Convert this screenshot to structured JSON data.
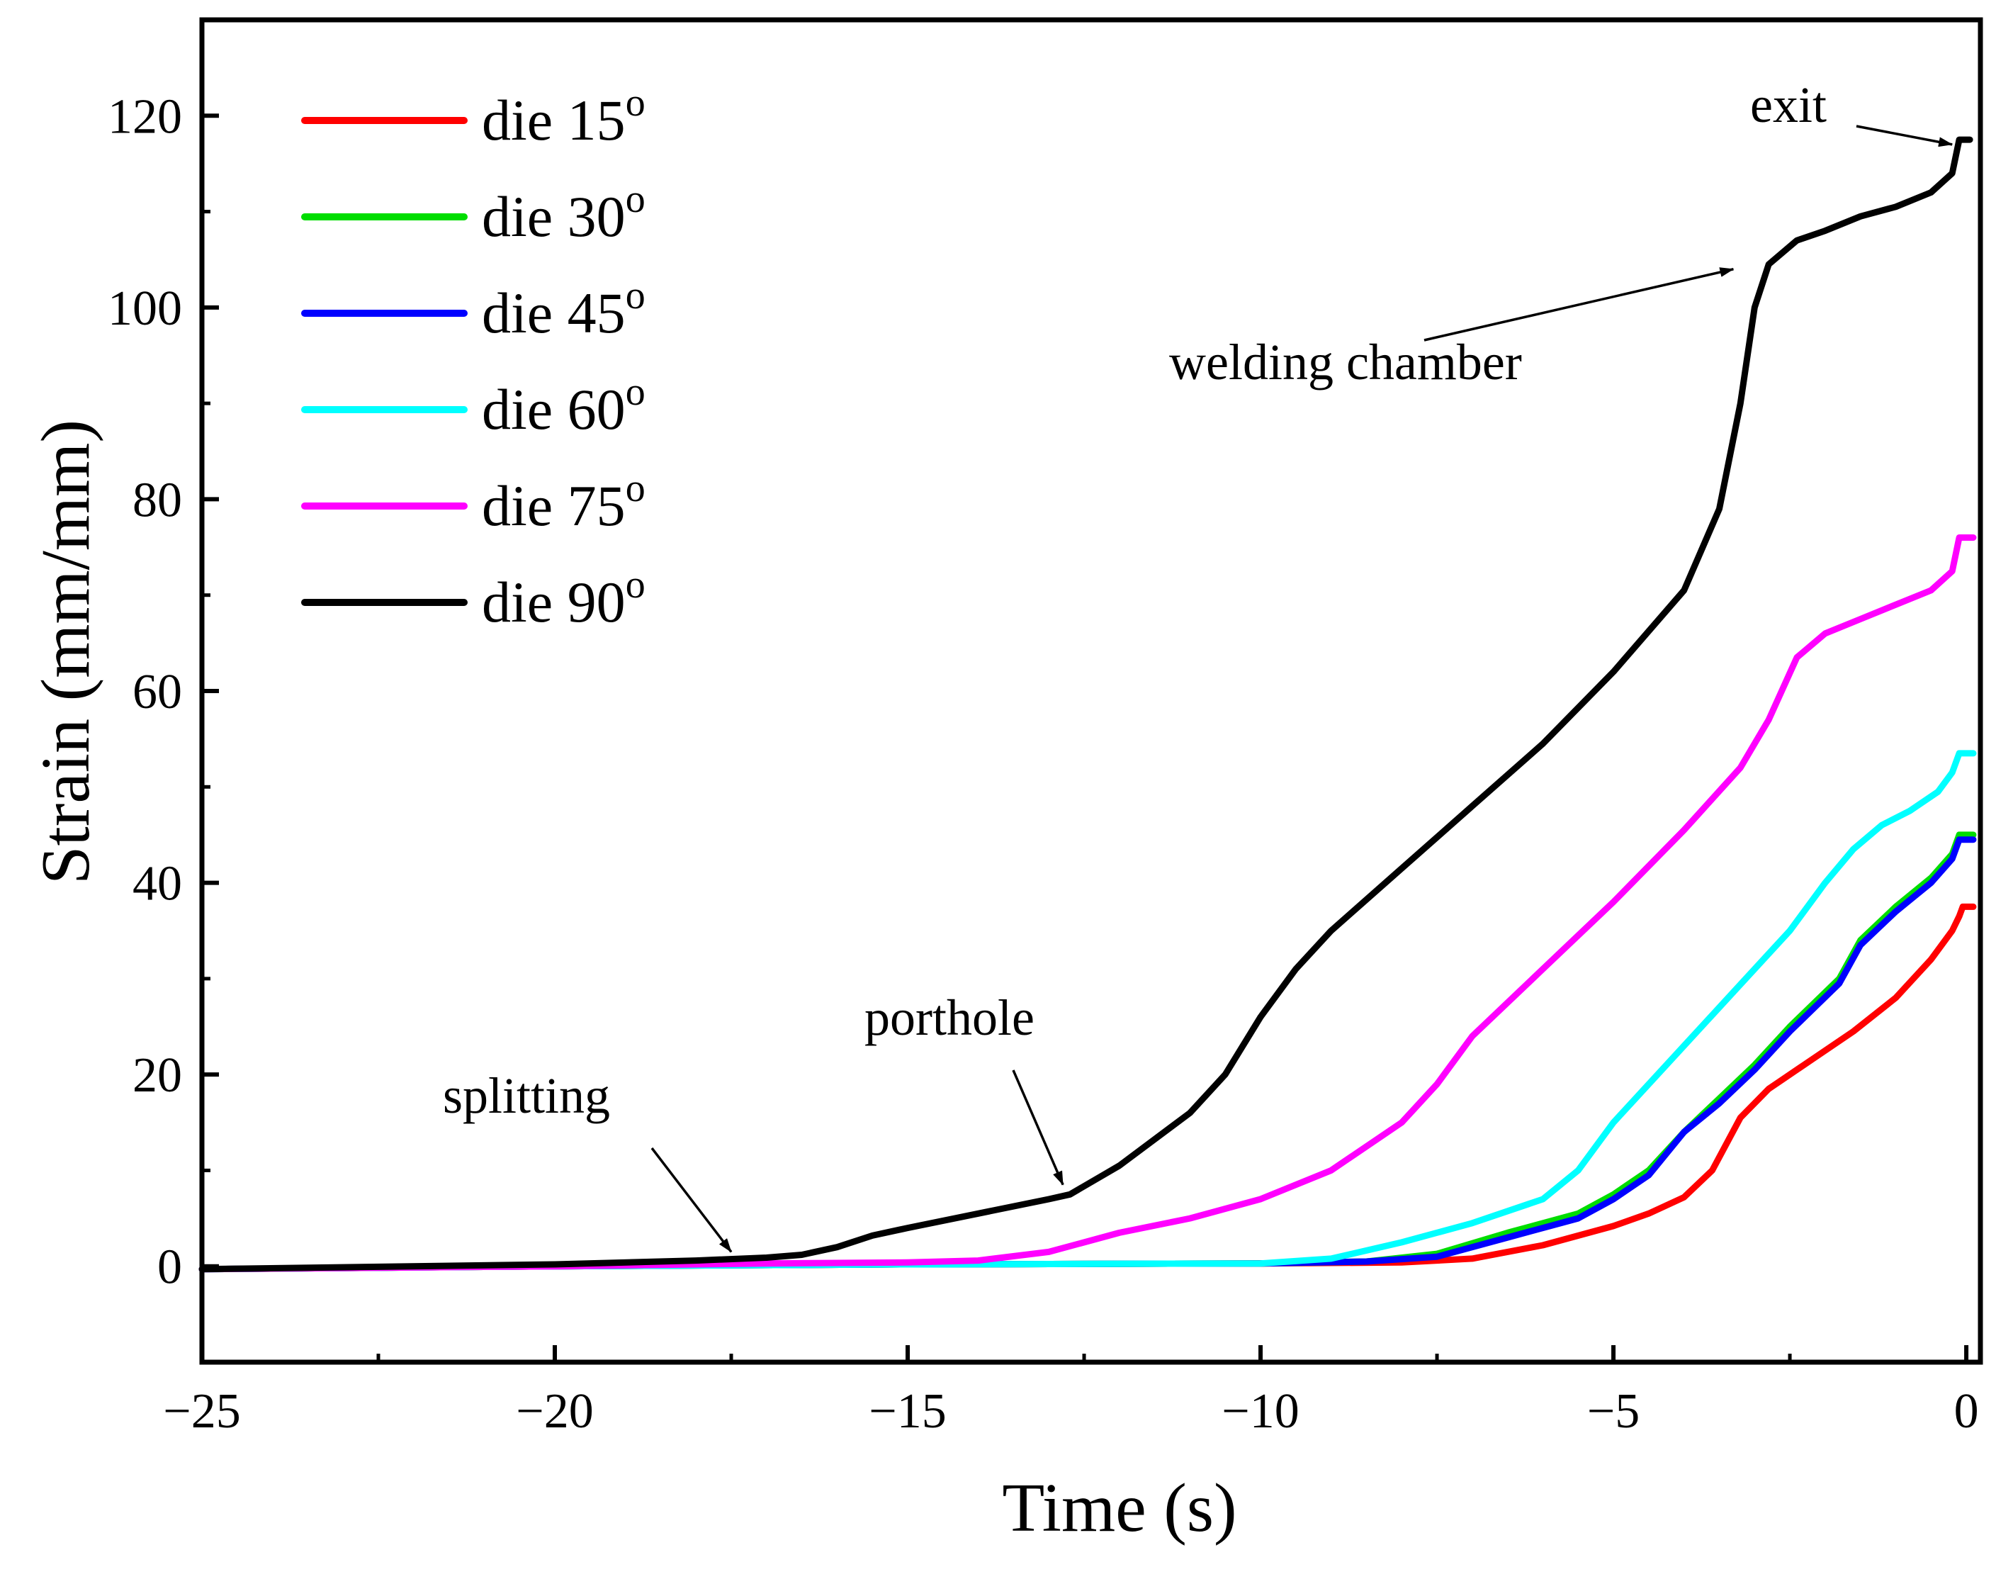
{
  "chart_data": {
    "type": "line",
    "title": "",
    "xlabel": "Time (s)",
    "ylabel": "Strain (mm/mm)",
    "xlim": [
      -25,
      0.2
    ],
    "ylim": [
      -10,
      130
    ],
    "xticks": [
      -25,
      -20,
      -15,
      -10,
      -5,
      0
    ],
    "yticks": [
      0,
      20,
      40,
      60,
      80,
      100,
      120
    ],
    "xtick_labels": [
      "−25",
      "−20",
      "−15",
      "−10",
      "−5",
      "0"
    ],
    "ytick_labels": [
      "0",
      "20",
      "40",
      "60",
      "80",
      "100",
      "120"
    ],
    "grid": false,
    "legend_position": "top-left",
    "series": [
      {
        "name": "die 15",
        "legend_label": "die 15",
        "superscript": "o",
        "color": "#ff0000",
        "x": [
          -25,
          -20,
          -15,
          -10,
          -8,
          -7,
          -6,
          -5,
          -4.5,
          -4,
          -3.6,
          -3.2,
          -2.8,
          -2.2,
          -1.6,
          -1,
          -0.5,
          -0.2,
          -0.1,
          -0.05,
          0.1
        ],
        "y": [
          -0.3,
          0,
          0.2,
          0.3,
          0.4,
          0.8,
          2.2,
          4.2,
          5.5,
          7.2,
          10,
          15.5,
          18.5,
          21.5,
          24.5,
          28,
          32,
          35,
          36.5,
          37.5,
          37.5
        ]
      },
      {
        "name": "die 30",
        "legend_label": "die 30",
        "superscript": "o",
        "color": "#00dd00",
        "x": [
          -25,
          -20,
          -15,
          -10,
          -8.5,
          -7.5,
          -6.5,
          -5.5,
          -5,
          -4.5,
          -4,
          -3.5,
          -3,
          -2.5,
          -1.8,
          -1.5,
          -1,
          -0.5,
          -0.2,
          -0.1,
          0.1
        ],
        "y": [
          -0.3,
          0,
          0.2,
          0.3,
          0.5,
          1.3,
          3.5,
          5.5,
          7.5,
          10,
          14,
          17.5,
          21,
          25,
          30,
          34,
          37.5,
          40.5,
          43,
          45,
          45
        ]
      },
      {
        "name": "die 45",
        "legend_label": "die 45",
        "superscript": "o",
        "color": "#0000ff",
        "x": [
          -25,
          -20,
          -15,
          -10,
          -8.5,
          -7.5,
          -6.5,
          -5.5,
          -5,
          -4.5,
          -4,
          -3.5,
          -3,
          -2.5,
          -1.8,
          -1.5,
          -1,
          -0.5,
          -0.2,
          -0.1,
          0.1
        ],
        "y": [
          -0.3,
          0,
          0.2,
          0.3,
          0.5,
          1.0,
          3.0,
          5.0,
          7.0,
          9.5,
          14,
          17,
          20.5,
          24.5,
          29.5,
          33.5,
          37,
          40,
          42.5,
          44.5,
          44.5
        ]
      },
      {
        "name": "die 60",
        "legend_label": "die 60",
        "superscript": "o",
        "color": "#00ffff",
        "x": [
          -25,
          -20,
          -15,
          -10,
          -9,
          -8,
          -7,
          -6,
          -5.5,
          -5,
          -4.5,
          -4,
          -3.5,
          -3,
          -2.5,
          -2,
          -1.6,
          -1.2,
          -0.8,
          -0.4,
          -0.2,
          -0.1,
          0.1
        ],
        "y": [
          -0.3,
          0,
          0.2,
          0.3,
          0.8,
          2.5,
          4.5,
          7,
          10,
          15,
          19,
          23,
          27,
          31,
          35,
          40,
          43.5,
          46,
          47.5,
          49.5,
          51.5,
          53.5,
          53.5
        ]
      },
      {
        "name": "die 75",
        "legend_label": "die 75",
        "superscript": "o",
        "color": "#ff00ff",
        "x": [
          -25,
          -20,
          -17,
          -15,
          -14,
          -13,
          -12,
          -11,
          -10,
          -9,
          -8,
          -7.5,
          -7,
          -6,
          -5,
          -4,
          -3.2,
          -2.8,
          -2.4,
          -2.0,
          -1.5,
          -1.0,
          -0.5,
          -0.2,
          -0.1,
          0.1
        ],
        "y": [
          -0.3,
          0,
          0.3,
          0.4,
          0.6,
          1.5,
          3.5,
          5,
          7,
          10,
          15,
          19,
          24,
          31,
          38,
          45.5,
          52,
          57,
          63.5,
          66,
          67.5,
          69,
          70.5,
          72.5,
          76,
          76
        ]
      },
      {
        "name": "die 90",
        "legend_label": "die 90",
        "superscript": "o",
        "color": "#000000",
        "x": [
          -25,
          -20,
          -18,
          -17,
          -16.5,
          -16,
          -15.5,
          -15,
          -14,
          -13,
          -12.7,
          -12,
          -11,
          -10.5,
          -10,
          -9.5,
          -9,
          -8,
          -7,
          -6,
          -5,
          -4,
          -3.5,
          -3.2,
          -3.0,
          -2.8,
          -2.4,
          -2.0,
          -1.5,
          -1.0,
          -0.5,
          -0.2,
          -0.1,
          0.05
        ],
        "y": [
          -0.3,
          0.2,
          0.6,
          0.9,
          1.2,
          2.0,
          3.2,
          4.0,
          5.5,
          7.0,
          7.5,
          10.5,
          16,
          20,
          26,
          31,
          35,
          41.5,
          48,
          54.5,
          62,
          70.5,
          79,
          90,
          100,
          104.5,
          107,
          108,
          109.5,
          110.5,
          112,
          114,
          117.5,
          117.5
        ]
      }
    ],
    "annotations": [
      {
        "id": "splitting",
        "text": "splitting",
        "target": [
          -17.5,
          1.5
        ]
      },
      {
        "id": "porthole",
        "text": "porthole",
        "target": [
          -12.8,
          8.5
        ]
      },
      {
        "id": "welding-chamber",
        "text": "welding chamber",
        "target": [
          -3.3,
          104
        ]
      },
      {
        "id": "exit",
        "text": "exit",
        "target": [
          -0.2,
          117
        ]
      }
    ]
  }
}
